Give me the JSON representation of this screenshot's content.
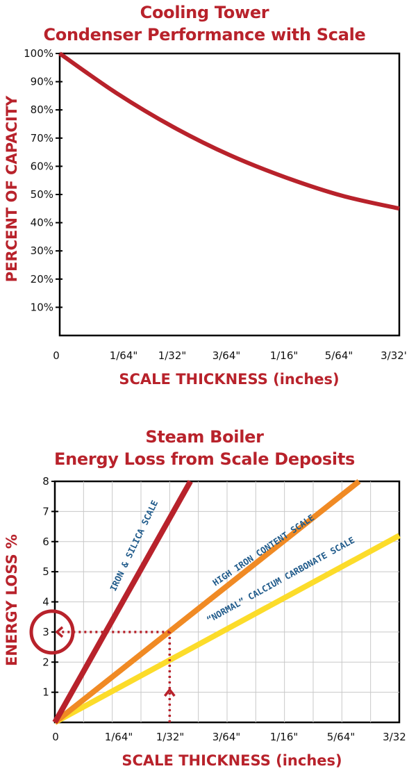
{
  "charts": {
    "chart1": {
      "title_lines": [
        "Cooling Tower",
        "Condenser Performance with Scale"
      ]
    },
    "chart2": {
      "title_lines": [
        "Steam Boiler",
        "Energy Loss from Scale Deposits"
      ]
    }
  },
  "chart_data": [
    {
      "type": "line",
      "title": "Cooling Tower Condenser Performance with Scale",
      "xlabel": "SCALE THICKNESS (inches)",
      "ylabel": "PERCENT OF CAPACITY",
      "x_tick_labels": [
        "0",
        "1/64\"",
        "1/32\"",
        "3/64\"",
        "1/16\"",
        "5/64\"",
        "3/32'"
      ],
      "x_tick_values": [
        0,
        0.015625,
        0.03125,
        0.046875,
        0.0625,
        0.078125,
        0.09375
      ],
      "y_tick_labels": [
        "100%",
        "90%",
        "80%",
        "70%",
        "60%",
        "50%",
        "40%",
        "30%",
        "20%",
        "10%"
      ],
      "y_tick_values": [
        100,
        90,
        80,
        70,
        60,
        50,
        40,
        30,
        20,
        10
      ],
      "xlim": [
        0,
        0.09375
      ],
      "ylim": [
        0,
        100
      ],
      "grid": false,
      "series": [
        {
          "color": "#b8222b",
          "x": [
            0,
            0.015625,
            0.03125,
            0.046875,
            0.0625,
            0.078125,
            0.09375
          ],
          "y": [
            100,
            86,
            74,
            64,
            56,
            49.5,
            45
          ]
        }
      ]
    },
    {
      "type": "line",
      "title": "Steam Boiler Energy Loss from Scale Deposits",
      "xlabel": "SCALE THICKNESS (inches)",
      "ylabel": "ENERGY LOSS %",
      "x_tick_labels": [
        "0",
        "1/64\"",
        "1/32\"",
        "3/64\"",
        "1/16\"",
        "5/64\"",
        "3/32"
      ],
      "x_tick_values": [
        0,
        0.015625,
        0.03125,
        0.046875,
        0.0625,
        0.078125,
        0.09375
      ],
      "y_tick_labels": [
        "1",
        "2",
        "3",
        "4",
        "5",
        "6",
        "7",
        "8"
      ],
      "y_tick_values": [
        1,
        2,
        3,
        4,
        5,
        6,
        7,
        8
      ],
      "xlim": [
        0,
        0.09375
      ],
      "ylim": [
        0,
        8
      ],
      "grid": true,
      "series": [
        {
          "name": "IRON & SILICA SCALE",
          "color": "#b8222b",
          "x": [
            0,
            0.0369
          ],
          "y": [
            0,
            8
          ]
        },
        {
          "name": "HIGH IRON CONTENT SCALE",
          "color": "#f08a24",
          "x": [
            0,
            0.0828
          ],
          "y": [
            0,
            8
          ]
        },
        {
          "name": "“NORMAL” CALCIUM CARBONATE SCALE",
          "color": "#fcdc2a",
          "x": [
            0,
            0.09375
          ],
          "y": [
            0,
            6.2
          ]
        }
      ],
      "annotations": [
        {
          "type": "reference",
          "x": 0.03125,
          "y": 3,
          "color": "#b8222b",
          "style": "dotted-arrows"
        },
        {
          "type": "circle",
          "y": 3,
          "color": "#b8222b"
        }
      ]
    }
  ]
}
